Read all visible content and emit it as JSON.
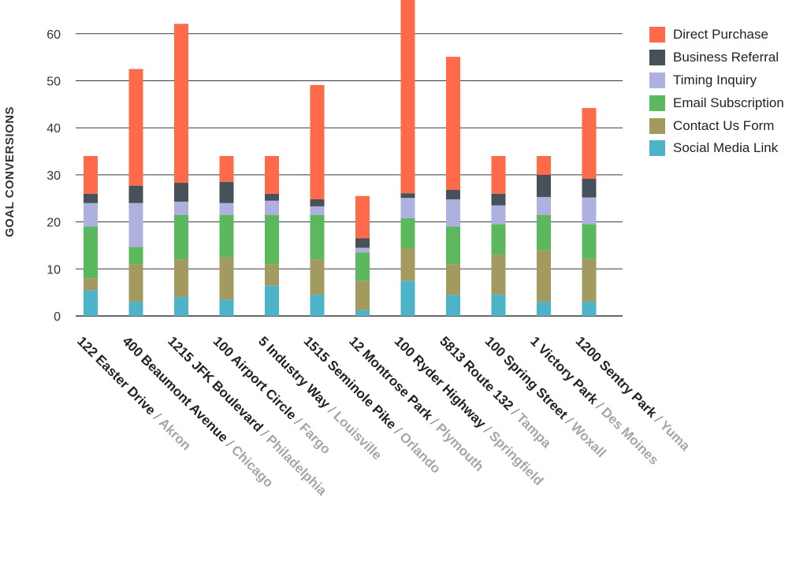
{
  "chart_data": {
    "type": "bar",
    "stacked": true,
    "ylabel": "GOAL CONVERSIONS",
    "ylim": [
      0,
      68
    ],
    "yticks": [
      0,
      10,
      20,
      30,
      40,
      50,
      60
    ],
    "grid": true,
    "legend_position": "top-right",
    "categories": [
      {
        "street": "122 Easter Drive",
        "city": "Akron"
      },
      {
        "street": "400 Beaumont Avenue",
        "city": "Chicago"
      },
      {
        "street": "1215 JFK Boulevard",
        "city": "Philadelphia"
      },
      {
        "street": "100 Airport Circle",
        "city": "Fargo"
      },
      {
        "street": "5 Industry Way",
        "city": "Louisville"
      },
      {
        "street": "1515 Seminole Pike",
        "city": "Orlando"
      },
      {
        "street": "12 Montrose Park",
        "city": "Plymouth"
      },
      {
        "street": "100 Ryder Highway",
        "city": "Springfield"
      },
      {
        "street": "5813 Route 132",
        "city": "Tampa"
      },
      {
        "street": "100 Spring Street",
        "city": "Woxall"
      },
      {
        "street": "1 Victory Park",
        "city": "Des Moines"
      },
      {
        "street": "1200 Sentry Park",
        "city": "Yuma"
      }
    ],
    "series": [
      {
        "name": "Social Media Link",
        "color": "#4db3c9",
        "values": [
          5.5,
          3,
          4,
          3.5,
          6.5,
          4.5,
          1.2,
          7.5,
          4.5,
          4.5,
          3,
          3
        ]
      },
      {
        "name": "Contact Us Form",
        "color": "#a39a5f",
        "values": [
          2.5,
          8,
          8,
          9,
          4.5,
          7.5,
          6.3,
          7,
          6.5,
          8.5,
          11,
          9.2
        ]
      },
      {
        "name": "Email Subscription",
        "color": "#5cb85c",
        "values": [
          11,
          3.7,
          9.5,
          9,
          10.5,
          9.5,
          6,
          6.3,
          8,
          6.5,
          7.5,
          7.3
        ]
      },
      {
        "name": "Timing Inquiry",
        "color": "#aeb0e0",
        "values": [
          5,
          9.3,
          2.8,
          2.5,
          3,
          1.8,
          1,
          4.3,
          5.8,
          4,
          3.8,
          5.7
        ]
      },
      {
        "name": "Business Referral",
        "color": "#46515a",
        "values": [
          2,
          3.7,
          4,
          4.5,
          1.5,
          1.5,
          2,
          1,
          2,
          2.5,
          4.7,
          4
        ]
      },
      {
        "name": "Direct Purchase",
        "color": "#ff6b4a",
        "values": [
          8,
          24.8,
          33.8,
          5.5,
          8,
          24.3,
          9,
          42,
          28.3,
          8,
          4,
          15
        ]
      }
    ],
    "legend_order": [
      "Direct Purchase",
      "Business Referral",
      "Timing Inquiry",
      "Email Subscription",
      "Contact Us Form",
      "Social Media Link"
    ]
  }
}
